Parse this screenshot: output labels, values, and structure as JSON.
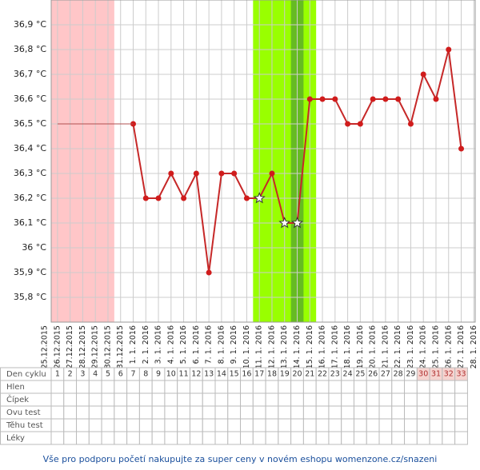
{
  "chart_data": {
    "type": "line",
    "x": [
      "25.12.2015",
      "26.12.2015",
      "27.12.2015",
      "28.12.2015",
      "29.12.2015",
      "30.12.2015",
      "31.12.2015",
      "1. 1. 2016",
      "2. 1. 2016",
      "3. 1. 2016",
      "4. 1. 2016",
      "5. 1. 2016",
      "6. 1. 2016",
      "7. 1. 2016",
      "8. 1. 2016",
      "9. 1. 2016",
      "10. 1. 2016",
      "11. 1. 2016",
      "12. 1. 2016",
      "13. 1. 2016",
      "14. 1. 2016",
      "15. 1. 2016",
      "16. 1. 2016",
      "17. 1. 2016",
      "18. 1. 2016",
      "19. 1. 2016",
      "20. 1. 2016",
      "21. 1. 2016",
      "22. 1. 2016",
      "23. 1. 2016",
      "24. 1. 2016",
      "25. 1. 2016",
      "26. 1. 2016",
      "27. 1. 2016",
      "28. 1. 2016"
    ],
    "series": [
      {
        "color": "#c62828",
        "star_indices": [
          17,
          19,
          20
        ],
        "values": [
          null,
          null,
          null,
          null,
          null,
          null,
          null,
          36.5,
          36.2,
          36.2,
          36.3,
          36.2,
          36.3,
          35.9,
          36.3,
          36.3,
          36.2,
          36.2,
          36.3,
          36.1,
          36.1,
          36.6,
          36.6,
          36.6,
          36.5,
          36.5,
          36.6,
          36.6,
          36.6,
          36.5,
          36.7,
          36.6,
          36.8,
          36.4,
          null
        ]
      },
      {
        "color": "#b05050",
        "values": [
          null,
          36.5,
          36.5,
          36.5,
          36.5,
          36.5,
          36.5,
          36.5,
          null,
          null,
          null,
          null,
          null,
          null,
          null,
          null,
          null,
          null,
          null,
          null,
          null,
          null,
          null,
          null,
          null,
          null,
          null,
          null,
          null,
          null,
          null,
          null,
          null,
          null,
          null
        ]
      }
    ],
    "ylim": [
      35.7,
      37.0
    ],
    "yticks": [
      {
        "value": 35.8,
        "label": "35,8 °C"
      },
      {
        "value": 35.9,
        "label": "35,9 °C"
      },
      {
        "value": 36.0,
        "label": "36 °C"
      },
      {
        "value": 36.1,
        "label": "36,1 °C"
      },
      {
        "value": 36.2,
        "label": "36,2 °C"
      },
      {
        "value": 36.3,
        "label": "36,3 °C"
      },
      {
        "value": 36.4,
        "label": "36,4 °C"
      },
      {
        "value": 36.5,
        "label": "36,5 °C"
      },
      {
        "value": 36.6,
        "label": "36,6 °C"
      },
      {
        "value": 36.7,
        "label": "36,7 °C"
      },
      {
        "value": 36.8,
        "label": "36,8 °C"
      },
      {
        "value": 36.9,
        "label": "36,9 °C"
      }
    ],
    "grid": true,
    "bands": [
      {
        "start": 1,
        "end": 5,
        "color": "#ffc6c8"
      },
      {
        "start": 17,
        "end": 21,
        "color": "#99ff00"
      },
      {
        "start": 20,
        "end": 20,
        "color": "#66bb22"
      }
    ]
  },
  "cycle_table": {
    "row_labels": [
      "Den cyklu",
      "Hlen",
      "Čípek",
      "Ovu test",
      "Těhu test",
      "Léky"
    ],
    "days": [
      1,
      2,
      3,
      4,
      5,
      6,
      7,
      8,
      9,
      10,
      11,
      12,
      13,
      14,
      15,
      16,
      17,
      18,
      19,
      20,
      21,
      22,
      23,
      24,
      25,
      26,
      27,
      28,
      29,
      30,
      31,
      32,
      33
    ],
    "predicted_from": 30,
    "predicted_color": "#f6d4d0"
  },
  "footer": "Vše pro podporu početí nakupujte za super ceny v novém eshopu womenzone.cz/snazeni"
}
